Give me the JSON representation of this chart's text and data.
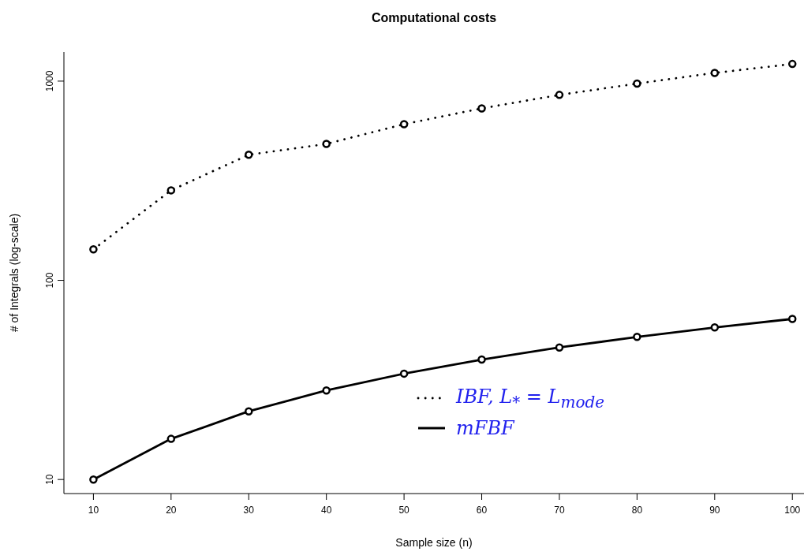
{
  "chart_data": {
    "type": "line",
    "title": "Computational costs",
    "xlabel": "Sample size (n)",
    "ylabel": "# of Integrals (log-scale)",
    "x": [
      10,
      20,
      30,
      40,
      50,
      60,
      70,
      80,
      90,
      100
    ],
    "series": [
      {
        "name": "IBF, L$_{*}$ = L$_{mode}$",
        "color": "#000000",
        "line_style": "dotted",
        "values": [
          143,
          283,
          427,
          484,
          608,
          730,
          853,
          972,
          1100,
          1220
        ]
      },
      {
        "name": "mFBF",
        "color": "#000000",
        "line_style": "solid",
        "values": [
          10,
          16,
          22,
          28,
          34,
          40,
          46,
          52,
          58,
          64
        ]
      }
    ],
    "log": "y",
    "xlim": [
      6.2,
      101.5
    ],
    "ylim": [
      8.5,
      1400
    ],
    "xticks": [
      10,
      20,
      30,
      40,
      50,
      60,
      70,
      80,
      90,
      100
    ],
    "yticks": [
      10,
      100,
      1000
    ],
    "grid": false,
    "legend": "bottom",
    "marker": "circle"
  }
}
